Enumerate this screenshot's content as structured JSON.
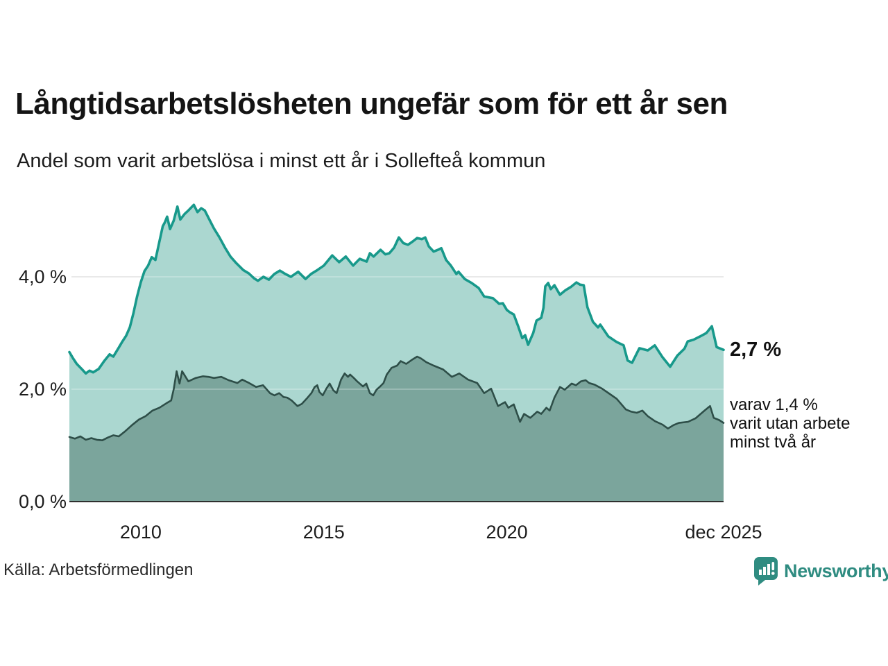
{
  "chart_data": {
    "type": "area",
    "title": "Långtidsarbetslösheten ungefär som för ett år sen",
    "subtitle": "Andel som varit arbetslösa i minst ett år i Sollefteå kommun",
    "unit": "%",
    "grid": true,
    "legend_position": "right-edge-annotations",
    "x_axis": {
      "range": [
        2008.05,
        2025.92
      ],
      "ticks": [
        {
          "label": "2010",
          "x": 2010
        },
        {
          "label": "2015",
          "x": 2015
        },
        {
          "label": "2020",
          "x": 2020
        },
        {
          "label": "dec 2025",
          "x": 2025.92
        }
      ]
    },
    "y_axis": {
      "range": [
        0,
        5.6
      ],
      "ticks": [
        {
          "label": "0,0 %",
          "value": 0
        },
        {
          "label": "2,0 %",
          "value": 2
        },
        {
          "label": "4,0 %",
          "value": 4
        }
      ]
    },
    "series": [
      {
        "name": "Andel som varit arbetslösa i minst ett år",
        "line_color": "#18998b",
        "fill_color": "#abd7d0",
        "last_value": 2.7,
        "points": [
          [
            2008.05,
            2.66
          ],
          [
            2008.15,
            2.55
          ],
          [
            2008.25,
            2.45
          ],
          [
            2008.4,
            2.35
          ],
          [
            2008.5,
            2.28
          ],
          [
            2008.6,
            2.33
          ],
          [
            2008.7,
            2.3
          ],
          [
            2008.85,
            2.36
          ],
          [
            2009.0,
            2.5
          ],
          [
            2009.15,
            2.62
          ],
          [
            2009.25,
            2.58
          ],
          [
            2009.4,
            2.74
          ],
          [
            2009.5,
            2.85
          ],
          [
            2009.6,
            2.95
          ],
          [
            2009.7,
            3.1
          ],
          [
            2009.8,
            3.35
          ],
          [
            2009.9,
            3.65
          ],
          [
            2010.0,
            3.9
          ],
          [
            2010.1,
            4.1
          ],
          [
            2010.2,
            4.2
          ],
          [
            2010.3,
            4.35
          ],
          [
            2010.4,
            4.3
          ],
          [
            2010.5,
            4.6
          ],
          [
            2010.6,
            4.9
          ],
          [
            2010.66,
            4.97
          ],
          [
            2010.72,
            5.07
          ],
          [
            2010.8,
            4.85
          ],
          [
            2010.9,
            5.0
          ],
          [
            2011.0,
            5.25
          ],
          [
            2011.08,
            5.02
          ],
          [
            2011.2,
            5.12
          ],
          [
            2011.3,
            5.18
          ],
          [
            2011.45,
            5.28
          ],
          [
            2011.55,
            5.15
          ],
          [
            2011.65,
            5.22
          ],
          [
            2011.75,
            5.18
          ],
          [
            2011.85,
            5.05
          ],
          [
            2012.0,
            4.86
          ],
          [
            2012.15,
            4.7
          ],
          [
            2012.3,
            4.52
          ],
          [
            2012.45,
            4.36
          ],
          [
            2012.6,
            4.25
          ],
          [
            2012.8,
            4.12
          ],
          [
            2012.95,
            4.06
          ],
          [
            2013.1,
            3.97
          ],
          [
            2013.2,
            3.93
          ],
          [
            2013.35,
            4.0
          ],
          [
            2013.5,
            3.95
          ],
          [
            2013.65,
            4.05
          ],
          [
            2013.8,
            4.11
          ],
          [
            2013.95,
            4.05
          ],
          [
            2014.1,
            4.0
          ],
          [
            2014.3,
            4.09
          ],
          [
            2014.5,
            3.96
          ],
          [
            2014.65,
            4.05
          ],
          [
            2014.8,
            4.11
          ],
          [
            2015.0,
            4.2
          ],
          [
            2015.23,
            4.38
          ],
          [
            2015.42,
            4.26
          ],
          [
            2015.6,
            4.36
          ],
          [
            2015.8,
            4.2
          ],
          [
            2015.98,
            4.32
          ],
          [
            2016.17,
            4.27
          ],
          [
            2016.26,
            4.42
          ],
          [
            2016.36,
            4.36
          ],
          [
            2016.55,
            4.48
          ],
          [
            2016.68,
            4.4
          ],
          [
            2016.79,
            4.42
          ],
          [
            2016.92,
            4.52
          ],
          [
            2017.05,
            4.7
          ],
          [
            2017.17,
            4.6
          ],
          [
            2017.3,
            4.57
          ],
          [
            2017.43,
            4.63
          ],
          [
            2017.55,
            4.69
          ],
          [
            2017.68,
            4.67
          ],
          [
            2017.77,
            4.7
          ],
          [
            2017.87,
            4.54
          ],
          [
            2018.0,
            4.45
          ],
          [
            2018.12,
            4.48
          ],
          [
            2018.21,
            4.51
          ],
          [
            2018.34,
            4.3
          ],
          [
            2018.47,
            4.2
          ],
          [
            2018.62,
            4.05
          ],
          [
            2018.68,
            4.09
          ],
          [
            2018.85,
            3.96
          ],
          [
            2019.04,
            3.89
          ],
          [
            2019.23,
            3.8
          ],
          [
            2019.38,
            3.65
          ],
          [
            2019.62,
            3.62
          ],
          [
            2019.79,
            3.52
          ],
          [
            2019.89,
            3.53
          ],
          [
            2020.0,
            3.41
          ],
          [
            2020.08,
            3.37
          ],
          [
            2020.19,
            3.33
          ],
          [
            2020.32,
            3.1
          ],
          [
            2020.42,
            2.91
          ],
          [
            2020.5,
            2.96
          ],
          [
            2020.58,
            2.79
          ],
          [
            2020.72,
            3.0
          ],
          [
            2020.81,
            3.22
          ],
          [
            2020.94,
            3.27
          ],
          [
            2021.0,
            3.45
          ],
          [
            2021.05,
            3.83
          ],
          [
            2021.13,
            3.89
          ],
          [
            2021.2,
            3.78
          ],
          [
            2021.3,
            3.85
          ],
          [
            2021.45,
            3.68
          ],
          [
            2021.6,
            3.76
          ],
          [
            2021.75,
            3.82
          ],
          [
            2021.9,
            3.9
          ],
          [
            2022.0,
            3.86
          ],
          [
            2022.1,
            3.85
          ],
          [
            2022.2,
            3.46
          ],
          [
            2022.35,
            3.2
          ],
          [
            2022.49,
            3.1
          ],
          [
            2022.55,
            3.15
          ],
          [
            2022.77,
            2.94
          ],
          [
            2023.0,
            2.84
          ],
          [
            2023.19,
            2.78
          ],
          [
            2023.3,
            2.51
          ],
          [
            2023.42,
            2.47
          ],
          [
            2023.62,
            2.73
          ],
          [
            2023.85,
            2.69
          ],
          [
            2024.04,
            2.78
          ],
          [
            2024.25,
            2.57
          ],
          [
            2024.46,
            2.4
          ],
          [
            2024.66,
            2.6
          ],
          [
            2024.85,
            2.72
          ],
          [
            2024.94,
            2.85
          ],
          [
            2025.1,
            2.88
          ],
          [
            2025.28,
            2.94
          ],
          [
            2025.45,
            3.0
          ],
          [
            2025.6,
            3.12
          ],
          [
            2025.73,
            2.75
          ],
          [
            2025.92,
            2.7
          ]
        ]
      },
      {
        "name": "varav utan arbete minst två år",
        "line_color": "#2e4e48",
        "fill_color": "#7ba59c",
        "last_value": 1.4,
        "points": [
          [
            2008.05,
            1.15
          ],
          [
            2008.2,
            1.12
          ],
          [
            2008.35,
            1.16
          ],
          [
            2008.5,
            1.1
          ],
          [
            2008.65,
            1.13
          ],
          [
            2008.8,
            1.1
          ],
          [
            2008.95,
            1.09
          ],
          [
            2009.1,
            1.14
          ],
          [
            2009.25,
            1.18
          ],
          [
            2009.4,
            1.16
          ],
          [
            2009.57,
            1.25
          ],
          [
            2009.76,
            1.36
          ],
          [
            2009.95,
            1.46
          ],
          [
            2010.13,
            1.52
          ],
          [
            2010.32,
            1.62
          ],
          [
            2010.51,
            1.67
          ],
          [
            2010.7,
            1.75
          ],
          [
            2010.83,
            1.8
          ],
          [
            2010.9,
            2.0
          ],
          [
            2010.98,
            2.32
          ],
          [
            2011.06,
            2.1
          ],
          [
            2011.13,
            2.32
          ],
          [
            2011.3,
            2.14
          ],
          [
            2011.5,
            2.2
          ],
          [
            2011.7,
            2.23
          ],
          [
            2011.85,
            2.22
          ],
          [
            2012.0,
            2.2
          ],
          [
            2012.2,
            2.22
          ],
          [
            2012.4,
            2.16
          ],
          [
            2012.64,
            2.11
          ],
          [
            2012.77,
            2.17
          ],
          [
            2012.96,
            2.11
          ],
          [
            2013.15,
            2.04
          ],
          [
            2013.34,
            2.07
          ],
          [
            2013.53,
            1.93
          ],
          [
            2013.65,
            1.89
          ],
          [
            2013.78,
            1.93
          ],
          [
            2013.9,
            1.86
          ],
          [
            2014.0,
            1.85
          ],
          [
            2014.12,
            1.8
          ],
          [
            2014.28,
            1.7
          ],
          [
            2014.4,
            1.74
          ],
          [
            2014.53,
            1.83
          ],
          [
            2014.66,
            1.93
          ],
          [
            2014.75,
            2.04
          ],
          [
            2014.82,
            2.07
          ],
          [
            2014.88,
            1.95
          ],
          [
            2014.97,
            1.89
          ],
          [
            2015.07,
            2.01
          ],
          [
            2015.16,
            2.1
          ],
          [
            2015.26,
            1.98
          ],
          [
            2015.35,
            1.93
          ],
          [
            2015.47,
            2.17
          ],
          [
            2015.57,
            2.28
          ],
          [
            2015.66,
            2.22
          ],
          [
            2015.72,
            2.26
          ],
          [
            2015.82,
            2.2
          ],
          [
            2015.91,
            2.14
          ],
          [
            2016.07,
            2.05
          ],
          [
            2016.16,
            2.1
          ],
          [
            2016.26,
            1.93
          ],
          [
            2016.35,
            1.89
          ],
          [
            2016.44,
            1.99
          ],
          [
            2016.54,
            2.05
          ],
          [
            2016.63,
            2.11
          ],
          [
            2016.72,
            2.26
          ],
          [
            2016.85,
            2.38
          ],
          [
            2017.0,
            2.42
          ],
          [
            2017.1,
            2.5
          ],
          [
            2017.25,
            2.45
          ],
          [
            2017.4,
            2.52
          ],
          [
            2017.55,
            2.58
          ],
          [
            2017.65,
            2.55
          ],
          [
            2017.8,
            2.48
          ],
          [
            2018.0,
            2.42
          ],
          [
            2018.26,
            2.35
          ],
          [
            2018.5,
            2.22
          ],
          [
            2018.7,
            2.28
          ],
          [
            2018.94,
            2.17
          ],
          [
            2019.19,
            2.11
          ],
          [
            2019.38,
            1.93
          ],
          [
            2019.57,
            2.01
          ],
          [
            2019.76,
            1.7
          ],
          [
            2019.95,
            1.77
          ],
          [
            2020.04,
            1.67
          ],
          [
            2020.19,
            1.73
          ],
          [
            2020.36,
            1.42
          ],
          [
            2020.47,
            1.56
          ],
          [
            2020.64,
            1.49
          ],
          [
            2020.83,
            1.6
          ],
          [
            2020.94,
            1.56
          ],
          [
            2021.08,
            1.67
          ],
          [
            2021.17,
            1.62
          ],
          [
            2021.3,
            1.85
          ],
          [
            2021.45,
            2.04
          ],
          [
            2021.58,
            1.99
          ],
          [
            2021.77,
            2.1
          ],
          [
            2021.89,
            2.07
          ],
          [
            2022.02,
            2.14
          ],
          [
            2022.15,
            2.16
          ],
          [
            2022.25,
            2.11
          ],
          [
            2022.4,
            2.08
          ],
          [
            2022.6,
            2.01
          ],
          [
            2022.8,
            1.92
          ],
          [
            2023.0,
            1.83
          ],
          [
            2023.25,
            1.64
          ],
          [
            2023.4,
            1.6
          ],
          [
            2023.55,
            1.58
          ],
          [
            2023.7,
            1.62
          ],
          [
            2023.85,
            1.52
          ],
          [
            2024.05,
            1.43
          ],
          [
            2024.25,
            1.37
          ],
          [
            2024.4,
            1.3
          ],
          [
            2024.55,
            1.36
          ],
          [
            2024.7,
            1.4
          ],
          [
            2024.95,
            1.42
          ],
          [
            2025.15,
            1.48
          ],
          [
            2025.4,
            1.62
          ],
          [
            2025.55,
            1.7
          ],
          [
            2025.65,
            1.49
          ],
          [
            2025.8,
            1.45
          ],
          [
            2025.92,
            1.4
          ]
        ]
      }
    ],
    "annotations": {
      "total_label": "2,7 %",
      "two_year_note": "varav 1,4 %\nvarit utan arbete\nminst två år"
    },
    "colors": {
      "grid": "#d8d8d8",
      "axis_line": "#2f2f2f",
      "text": "#1c1c1c"
    }
  },
  "footer": {
    "source": "Källa: Arbetsförmedlingen",
    "brand_name": "Newsworthy",
    "brand_color": "#2f8c81"
  }
}
